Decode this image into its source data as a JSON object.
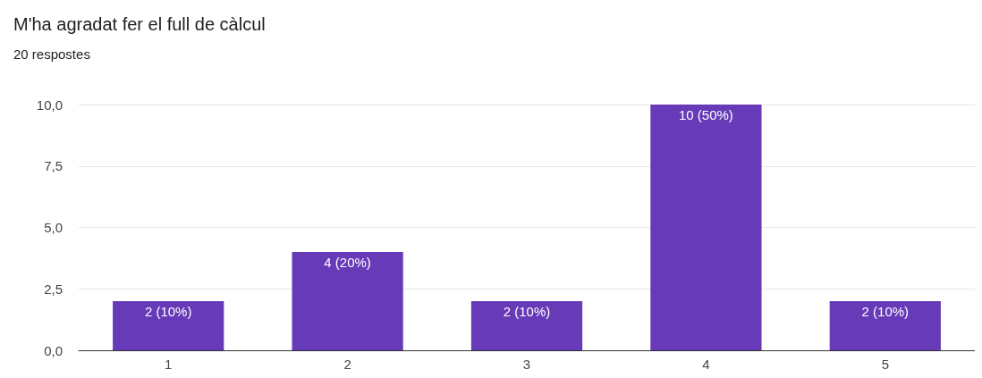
{
  "chart_data": {
    "type": "bar",
    "title": "M'ha agradat fer el full de càlcul",
    "subtitle": "20 respostes",
    "categories": [
      "1",
      "2",
      "3",
      "4",
      "5"
    ],
    "values": [
      2,
      4,
      2,
      10,
      2
    ],
    "value_labels": [
      "2 (10%)",
      "4 (20%)",
      "2 (10%)",
      "10 (50%)",
      "2 (10%)"
    ],
    "color": "#673ab7",
    "ylim": [
      0,
      10
    ],
    "yticks": [
      {
        "value": 0,
        "label": "0,0"
      },
      {
        "value": 2.5,
        "label": "2,5"
      },
      {
        "value": 5,
        "label": "5,0"
      },
      {
        "value": 7.5,
        "label": "7,5"
      },
      {
        "value": 10,
        "label": "10,0"
      }
    ],
    "grid": "y"
  }
}
